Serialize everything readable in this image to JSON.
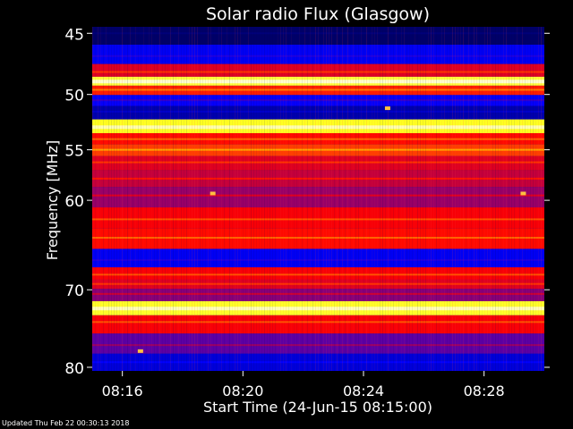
{
  "chart_data": {
    "type": "heatmap",
    "title": "Solar radio Flux (Glasgow)",
    "xlabel": "Start Time (24-Jun-15 08:15:00)",
    "ylabel": "Frequency [MHz]",
    "x_ticks": [
      "08:16",
      "08:20",
      "08:24",
      "08:28"
    ],
    "x_tick_minutes": [
      1,
      5,
      9,
      13
    ],
    "xlim_minutes": [
      0,
      15
    ],
    "y_ticks": [
      45,
      50,
      55,
      60,
      70,
      80
    ],
    "ylim_mhz": [
      44.5,
      80.5
    ],
    "y_scale": "log",
    "colormap": [
      "#000000",
      "#0000ff",
      "#ff0000",
      "#ffff00",
      "#ffffff"
    ],
    "grid": false,
    "bands": [
      {
        "mhz": 45.0,
        "intensity": 0.12
      },
      {
        "mhz": 46.8,
        "intensity": 0.28
      },
      {
        "mhz": 48.1,
        "intensity": 0.55
      },
      {
        "mhz": 48.9,
        "intensity": 0.95
      },
      {
        "mhz": 49.6,
        "intensity": 0.62
      },
      {
        "mhz": 50.5,
        "intensity": 0.3
      },
      {
        "mhz": 51.5,
        "intensity": 0.2
      },
      {
        "mhz": 52.9,
        "intensity": 0.92
      },
      {
        "mhz": 54.0,
        "intensity": 0.6
      },
      {
        "mhz": 55.0,
        "intensity": 0.66
      },
      {
        "mhz": 56.2,
        "intensity": 0.55
      },
      {
        "mhz": 57.8,
        "intensity": 0.52
      },
      {
        "mhz": 59.5,
        "intensity": 0.47
      },
      {
        "mhz": 62.0,
        "intensity": 0.58
      },
      {
        "mhz": 64.0,
        "intensity": 0.6
      },
      {
        "mhz": 66.5,
        "intensity": 0.28
      },
      {
        "mhz": 68.2,
        "intensity": 0.58
      },
      {
        "mhz": 69.3,
        "intensity": 0.55
      },
      {
        "mhz": 70.5,
        "intensity": 0.45
      },
      {
        "mhz": 72.3,
        "intensity": 0.93
      },
      {
        "mhz": 74.0,
        "intensity": 0.58
      },
      {
        "mhz": 77.0,
        "intensity": 0.4
      },
      {
        "mhz": 79.3,
        "intensity": 0.25
      }
    ],
    "bursts": [
      {
        "minute": 4.0,
        "mhz": 59.3
      },
      {
        "minute": 14.3,
        "mhz": 59.3
      },
      {
        "minute": 9.8,
        "mhz": 51.2
      },
      {
        "minute": 1.6,
        "mhz": 77.8
      }
    ]
  },
  "footer": "Updated Thu Feb 22 00:30:13 2018"
}
